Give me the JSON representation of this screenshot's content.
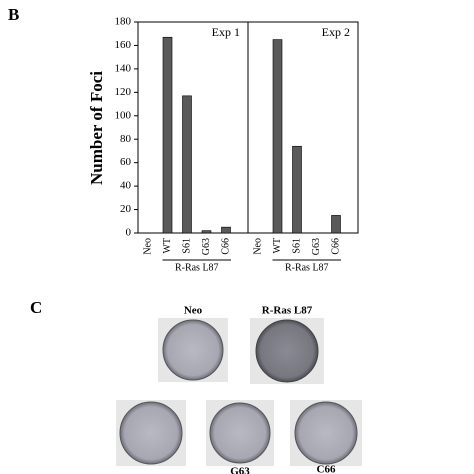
{
  "panel_labels": [
    "B",
    "C"
  ],
  "chart_data": [
    {
      "type": "bar",
      "title": "Exp 1",
      "y_label": "Number of Foci",
      "group_label": "R-Ras L87",
      "categories": [
        "Neo",
        "WT",
        "S61",
        "G63",
        "C66"
      ],
      "values": [
        0,
        167,
        117,
        2,
        5
      ],
      "color": "#5a5a5a",
      "ylim": [
        0,
        180
      ],
      "yticks": [
        0,
        20,
        40,
        60,
        80,
        100,
        120,
        140,
        160,
        180
      ]
    },
    {
      "type": "bar",
      "title": "Exp 2",
      "group_label": "R-Ras L87",
      "categories": [
        "Neo",
        "WT",
        "S61",
        "G63",
        "C66"
      ],
      "values": [
        0,
        165,
        74,
        0,
        15
      ],
      "color": "#5a5a5a",
      "ylim": [
        0,
        180
      ]
    }
  ],
  "plates": [
    "Neo",
    "R-Ras L87",
    "G63",
    "C66"
  ]
}
